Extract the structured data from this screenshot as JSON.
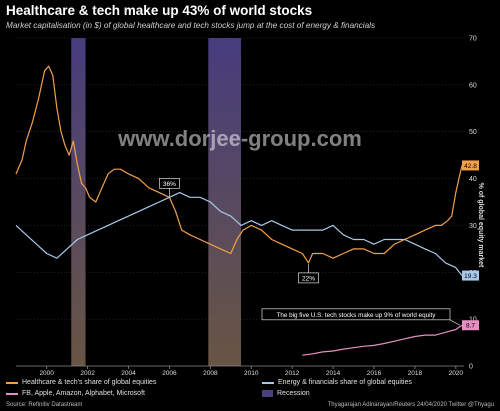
{
  "header": {
    "title": "Healthcare & tech make up 43% of world stocks",
    "subtitle": "Market capitalisation (in $) of global healthcare and tech stocks jump at the cost of energy & financials",
    "y_axis_label": "% of global equity market"
  },
  "legend": {
    "items": [
      {
        "label": "Healthcare & tech's share of global equities",
        "color": "#f0a04b",
        "kind": "line"
      },
      {
        "label": "Energy & financials share of global equities",
        "color": "#a8c8ea",
        "kind": "line"
      },
      {
        "label": "FB, Apple, Amazon, Alphabet, Microsoft",
        "color": "#e58fc4",
        "kind": "line"
      },
      {
        "label": "Recession",
        "color": "#4a3f7a",
        "kind": "box"
      }
    ]
  },
  "footer": {
    "source": "Source: Refinitiv Datastream",
    "credit": "Thyagarajan Adinarayan/Reuters 24/04/2020 Twitter @Thyagu"
  },
  "watermark": "www.dorjee-group.com",
  "chart_data": {
    "type": "line",
    "title": "Healthcare & tech make up 43% of world stocks",
    "ylabel": "% of global equity market",
    "xlim": [
      1998.5,
      2020.4
    ],
    "ylim": [
      0,
      70
    ],
    "x_ticks": [
      "2000",
      "2002",
      "2004",
      "2006",
      "2008",
      "2010",
      "2012",
      "2014",
      "2016",
      "2018",
      "2020"
    ],
    "y_ticks": [
      "0",
      "10",
      "20",
      "30",
      "40",
      "50",
      "60",
      "70"
    ],
    "recessions": [
      [
        2001.2,
        2001.9
      ],
      [
        2007.9,
        2009.5
      ]
    ],
    "series": [
      {
        "name": "Healthcare & tech's share of global equities",
        "color": "#f0a04b",
        "x": [
          1998.5,
          1998.8,
          1999.0,
          1999.3,
          1999.6,
          1999.9,
          2000.1,
          2000.3,
          2000.5,
          2000.7,
          2000.9,
          2001.1,
          2001.3,
          2001.5,
          2001.7,
          2001.9,
          2002.1,
          2002.4,
          2002.7,
          2003.0,
          2003.3,
          2003.6,
          2004.0,
          2004.5,
          2005.0,
          2005.5,
          2006.0,
          2006.3,
          2006.6,
          2007.0,
          2007.5,
          2008.0,
          2008.5,
          2009.0,
          2009.3,
          2009.6,
          2010.0,
          2010.5,
          2011.0,
          2011.5,
          2012.0,
          2012.5,
          2012.8,
          2013.0,
          2013.5,
          2014.0,
          2014.5,
          2015.0,
          2015.5,
          2016.0,
          2016.5,
          2017.0,
          2017.5,
          2018.0,
          2018.5,
          2019.0,
          2019.3,
          2019.6,
          2019.8,
          2020.0,
          2020.15,
          2020.3
        ],
        "values": [
          41,
          44,
          48,
          52,
          57,
          63,
          64,
          62,
          55,
          50,
          47,
          45,
          48,
          43,
          39,
          38,
          36,
          35,
          38,
          41,
          42,
          42,
          41,
          40,
          38,
          37,
          36,
          33,
          29,
          28,
          27,
          26,
          25,
          24,
          27,
          29,
          30,
          29,
          27,
          26,
          25,
          24,
          22,
          24,
          24,
          23,
          24,
          25,
          25,
          24,
          24,
          26,
          27,
          28,
          29,
          30,
          30,
          31,
          32,
          37,
          40,
          42.8
        ]
      },
      {
        "name": "Energy & financials share of global equities",
        "color": "#a8c8ea",
        "x": [
          1998.5,
          1999.0,
          1999.5,
          2000.0,
          2000.5,
          2001.0,
          2001.5,
          2002.0,
          2002.5,
          2003.0,
          2003.5,
          2004.0,
          2004.5,
          2005.0,
          2005.5,
          2006.0,
          2006.5,
          2007.0,
          2007.5,
          2008.0,
          2008.5,
          2009.0,
          2009.5,
          2010.0,
          2010.5,
          2011.0,
          2011.5,
          2012.0,
          2012.5,
          2013.0,
          2013.5,
          2014.0,
          2014.5,
          2015.0,
          2015.5,
          2016.0,
          2016.5,
          2017.0,
          2017.5,
          2018.0,
          2018.5,
          2019.0,
          2019.5,
          2020.0,
          2020.3
        ],
        "values": [
          30,
          28,
          26,
          24,
          23,
          25,
          27,
          28,
          29,
          30,
          31,
          32,
          33,
          34,
          35,
          36,
          37,
          36,
          36,
          35,
          33,
          32,
          30,
          31,
          30,
          31,
          30,
          29,
          29,
          29,
          29,
          30,
          28,
          27,
          27,
          26,
          27,
          27,
          27,
          26,
          25,
          24,
          22,
          21,
          19.3
        ]
      },
      {
        "name": "FB, Apple, Amazon, Alphabet, Microsoft",
        "color": "#e58fc4",
        "x": [
          2012.5,
          2013.0,
          2013.5,
          2014.0,
          2014.5,
          2015.0,
          2015.5,
          2016.0,
          2016.5,
          2017.0,
          2017.5,
          2018.0,
          2018.5,
          2019.0,
          2019.5,
          2020.0,
          2020.3
        ],
        "values": [
          2.3,
          2.6,
          3.0,
          3.2,
          3.6,
          3.9,
          4.2,
          4.4,
          4.8,
          5.3,
          5.8,
          6.3,
          6.6,
          6.6,
          7.2,
          7.8,
          8.7
        ]
      }
    ],
    "annotations": [
      {
        "text": "36%",
        "x": 2006.0,
        "y": 36
      },
      {
        "text": "22%",
        "x": 2012.8,
        "y": 22
      },
      {
        "text": "The big five U.S. tech stocks make up 9% of world equity",
        "x": 2013.5,
        "y": 9
      }
    ],
    "end_labels": [
      {
        "text": "42.8",
        "value": 42.8,
        "bg": "#f0a04b",
        "fg": "#000"
      },
      {
        "text": "19.3",
        "value": 19.3,
        "bg": "#a8c8ea",
        "fg": "#000"
      },
      {
        "text": "8.7",
        "value": 8.7,
        "bg": "#e58fc4",
        "fg": "#000"
      }
    ]
  }
}
